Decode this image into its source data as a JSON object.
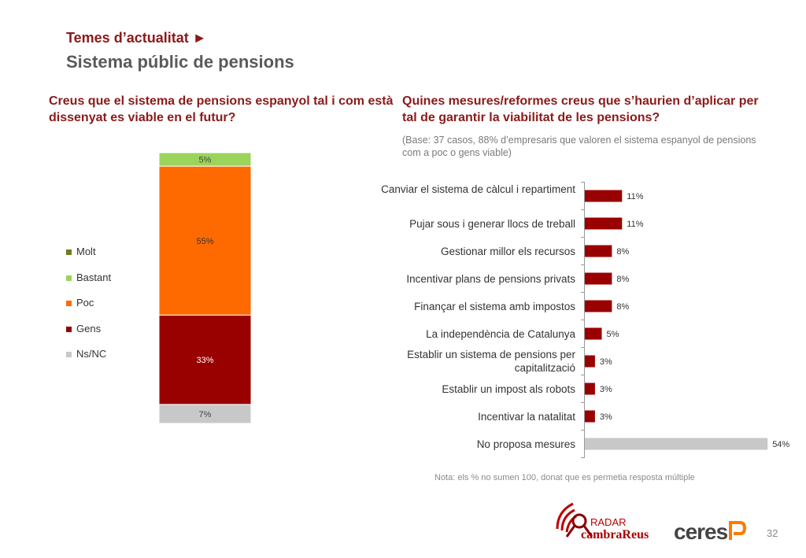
{
  "header": {
    "section": "Temes d’actualitat ►",
    "title": "Sistema públic de pensions"
  },
  "left": {
    "question": "Creus que el sistema de pensions espanyol tal i com està dissenyat es viable en el futur?"
  },
  "right": {
    "question": "Quines mesures/reformes creus que s’haurien d’aplicar per tal de garantir la viabilitat de les pensions?",
    "base": "(Base: 37 casos, 88% d’empresaris que valoren el sistema espanyol de pensions com a poc o gens viable)",
    "note": "Nota: els % no sumen 100, donat que es permetia resposta múltiple"
  },
  "footer": {
    "page_number": "32",
    "logo_radar_top": "RADAR",
    "logo_radar_bottom": "cambraReus",
    "logo_ceres": "ceres"
  },
  "chart_data": [
    {
      "type": "bar",
      "stacked": true,
      "series": [
        {
          "name": "Molt",
          "value": 0,
          "label": "",
          "color": "#6b7f1e"
        },
        {
          "name": "Bastant",
          "value": 5,
          "label": "5%",
          "color": "#9bd45a"
        },
        {
          "name": "Poc",
          "value": 55,
          "label": "55%",
          "color": "#ff6a00"
        },
        {
          "name": "Gens",
          "value": 33,
          "label": "33%",
          "color": "#990000"
        },
        {
          "name": "Ns/NC",
          "value": 7,
          "label": "7%",
          "color": "#c8c8c8"
        }
      ],
      "legend_position": "left"
    },
    {
      "type": "bar",
      "orientation": "horizontal",
      "categories": [
        "Canviar el sistema de càlcul i repartiment",
        "Pujar sous i generar llocs de treball",
        "Gestionar millor els recursos",
        "Incentivar plans de pensions privats",
        "Finançar el sistema amb impostos",
        "La independència de Catalunya",
        "Establir un sistema de pensions per capitalització",
        "Establir un impost als robots",
        "Incentivar la natalitat",
        "No proposa mesures"
      ],
      "values": [
        11,
        11,
        8,
        8,
        8,
        5,
        3,
        3,
        3,
        54
      ],
      "value_labels": [
        "11%",
        "11%",
        "8%",
        "8%",
        "8%",
        "5%",
        "3%",
        "3%",
        "3%",
        "54%"
      ],
      "colors": [
        "#990000",
        "#990000",
        "#990000",
        "#990000",
        "#990000",
        "#990000",
        "#990000",
        "#990000",
        "#990000",
        "#c8c8c8"
      ]
    }
  ]
}
